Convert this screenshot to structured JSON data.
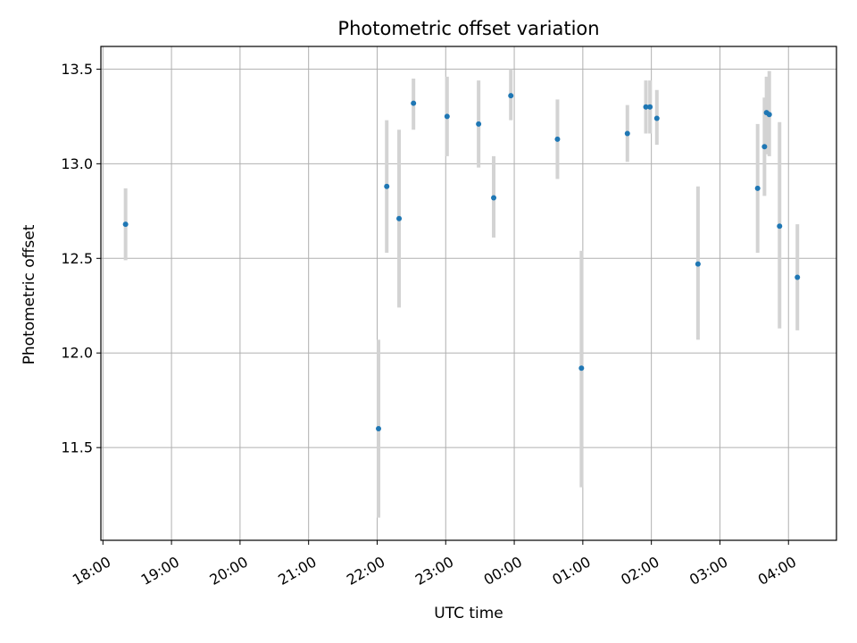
{
  "chart_data": {
    "type": "scatter",
    "title": "Photometric offset variation",
    "xlabel": "UTC time",
    "ylabel": "Photometric offset",
    "x_unit": "hours",
    "x_tick_values": [
      18,
      19,
      20,
      21,
      22,
      23,
      24,
      25,
      26,
      27,
      28
    ],
    "x_tick_labels": [
      "18:00",
      "19:00",
      "20:00",
      "21:00",
      "22:00",
      "23:00",
      "00:00",
      "01:00",
      "02:00",
      "03:00",
      "04:00"
    ],
    "xlim": [
      17.97,
      28.7
    ],
    "y_ticks": [
      11.5,
      12.0,
      12.5,
      13.0,
      13.5
    ],
    "y_tick_labels": [
      "11.5",
      "12.0",
      "12.5",
      "13.0",
      "13.5"
    ],
    "ylim": [
      11.01,
      13.62
    ],
    "grid": true,
    "marker_color": "#1f77b4",
    "errorbar_color": "#d3d3d3",
    "points": [
      {
        "x": 18.33,
        "y": 12.68,
        "yerr_low": 12.49,
        "yerr_high": 12.87
      },
      {
        "x": 22.02,
        "y": 11.6,
        "yerr_low": 11.13,
        "yerr_high": 12.07
      },
      {
        "x": 22.14,
        "y": 12.88,
        "yerr_low": 12.53,
        "yerr_high": 13.23
      },
      {
        "x": 22.32,
        "y": 12.71,
        "yerr_low": 12.24,
        "yerr_high": 13.18
      },
      {
        "x": 22.53,
        "y": 13.32,
        "yerr_low": 13.18,
        "yerr_high": 13.45
      },
      {
        "x": 23.02,
        "y": 13.25,
        "yerr_low": 13.04,
        "yerr_high": 13.46
      },
      {
        "x": 23.48,
        "y": 13.21,
        "yerr_low": 12.98,
        "yerr_high": 13.44
      },
      {
        "x": 23.7,
        "y": 12.82,
        "yerr_low": 12.61,
        "yerr_high": 13.04
      },
      {
        "x": 23.95,
        "y": 13.36,
        "yerr_low": 13.23,
        "yerr_high": 13.5
      },
      {
        "x": 24.63,
        "y": 13.13,
        "yerr_low": 12.92,
        "yerr_high": 13.34
      },
      {
        "x": 24.98,
        "y": 11.92,
        "yerr_low": 11.29,
        "yerr_high": 12.54
      },
      {
        "x": 25.65,
        "y": 13.16,
        "yerr_low": 13.01,
        "yerr_high": 13.31
      },
      {
        "x": 25.92,
        "y": 13.3,
        "yerr_low": 13.16,
        "yerr_high": 13.44
      },
      {
        "x": 25.98,
        "y": 13.3,
        "yerr_low": 13.16,
        "yerr_high": 13.44
      },
      {
        "x": 26.08,
        "y": 13.24,
        "yerr_low": 13.1,
        "yerr_high": 13.39
      },
      {
        "x": 26.68,
        "y": 12.47,
        "yerr_low": 12.07,
        "yerr_high": 12.88
      },
      {
        "x": 27.55,
        "y": 12.87,
        "yerr_low": 12.53,
        "yerr_high": 13.21
      },
      {
        "x": 27.65,
        "y": 13.09,
        "yerr_low": 12.83,
        "yerr_high": 13.35
      },
      {
        "x": 27.68,
        "y": 13.27,
        "yerr_low": 13.05,
        "yerr_high": 13.46
      },
      {
        "x": 27.72,
        "y": 13.26,
        "yerr_low": 13.04,
        "yerr_high": 13.49
      },
      {
        "x": 27.87,
        "y": 12.67,
        "yerr_low": 12.13,
        "yerr_high": 13.22
      },
      {
        "x": 28.13,
        "y": 12.4,
        "yerr_low": 12.12,
        "yerr_high": 12.68
      }
    ]
  }
}
